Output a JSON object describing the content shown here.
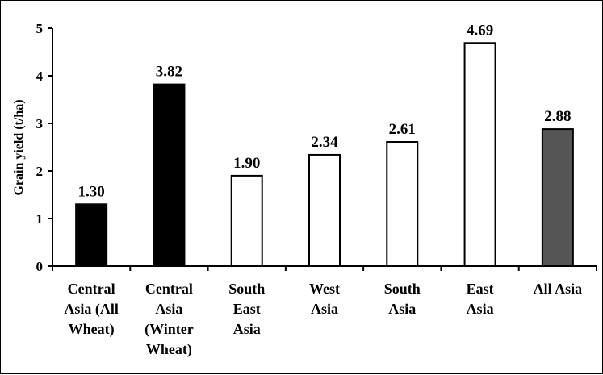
{
  "chart_data": {
    "type": "bar",
    "title": "",
    "xlabel": "",
    "ylabel": "Grain yield (t/ha)",
    "ylim": [
      0,
      5
    ],
    "yticks": [
      0,
      1,
      2,
      3,
      4,
      5
    ],
    "grid": false,
    "legend": "none",
    "categories": [
      [
        "Central",
        "Asia (All",
        "Wheat)"
      ],
      [
        "Central",
        "Asia",
        "(Winter",
        "Wheat)"
      ],
      [
        "South",
        "East",
        "Asia"
      ],
      [
        "West",
        "Asia"
      ],
      [
        "South",
        "Asia"
      ],
      [
        "East",
        "Asia"
      ],
      [
        "All Asia"
      ]
    ],
    "values": [
      1.3,
      3.82,
      1.9,
      2.34,
      2.61,
      4.69,
      2.88
    ],
    "value_labels": [
      "1.30",
      "3.82",
      "1.90",
      "2.34",
      "2.61",
      "4.69",
      "2.88"
    ],
    "bar_fills": [
      "#000000",
      "#000000",
      "#ffffff",
      "#ffffff",
      "#ffffff",
      "#ffffff",
      "#555555"
    ],
    "bar_stroke": "#000000"
  }
}
